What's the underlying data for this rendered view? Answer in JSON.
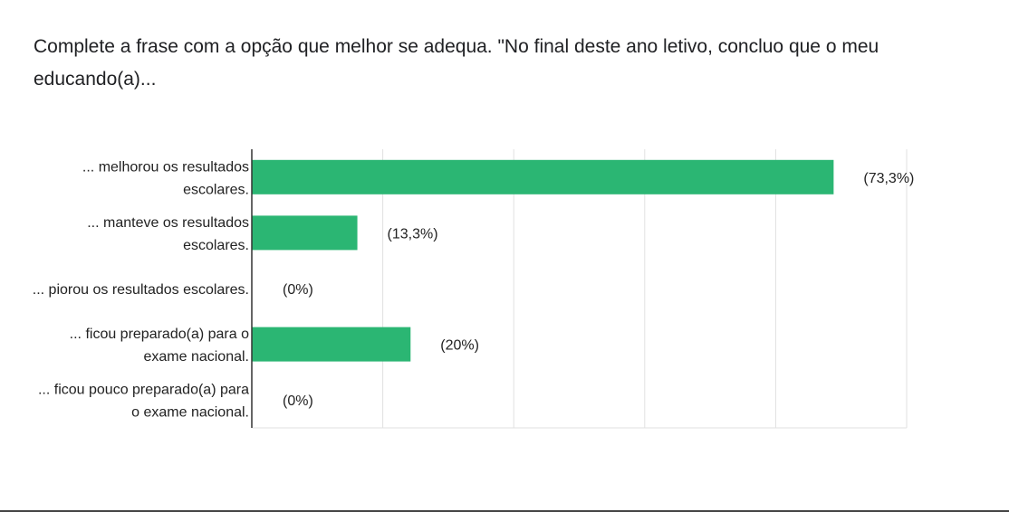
{
  "question": {
    "title": "Complete a frase com a opção que melhor se adequa. \"No final deste ano letivo, concluo que o meu educando(a)..."
  },
  "chart_data": {
    "type": "bar",
    "orientation": "horizontal",
    "categories": [
      [
        "... melhorou os resultados",
        "escolares."
      ],
      [
        "... manteve os resultados",
        "escolares."
      ],
      [
        "... piorou os resultados escolares."
      ],
      [
        "... ficou preparado(a) para o",
        "exame nacional."
      ],
      [
        "... ficou pouco preparado(a) para",
        "o exame nacional."
      ]
    ],
    "values": [
      73.3,
      13.3,
      0,
      20,
      0
    ],
    "value_labels": [
      "(73,3%)",
      "(13,3%)",
      "(0%)",
      "(20%)",
      "(0%)"
    ],
    "xlim": [
      0,
      82.5
    ],
    "grid": true,
    "bar_color": "#2bb673",
    "grid_color": "#e0e0e0",
    "axis_color": "#333333"
  }
}
